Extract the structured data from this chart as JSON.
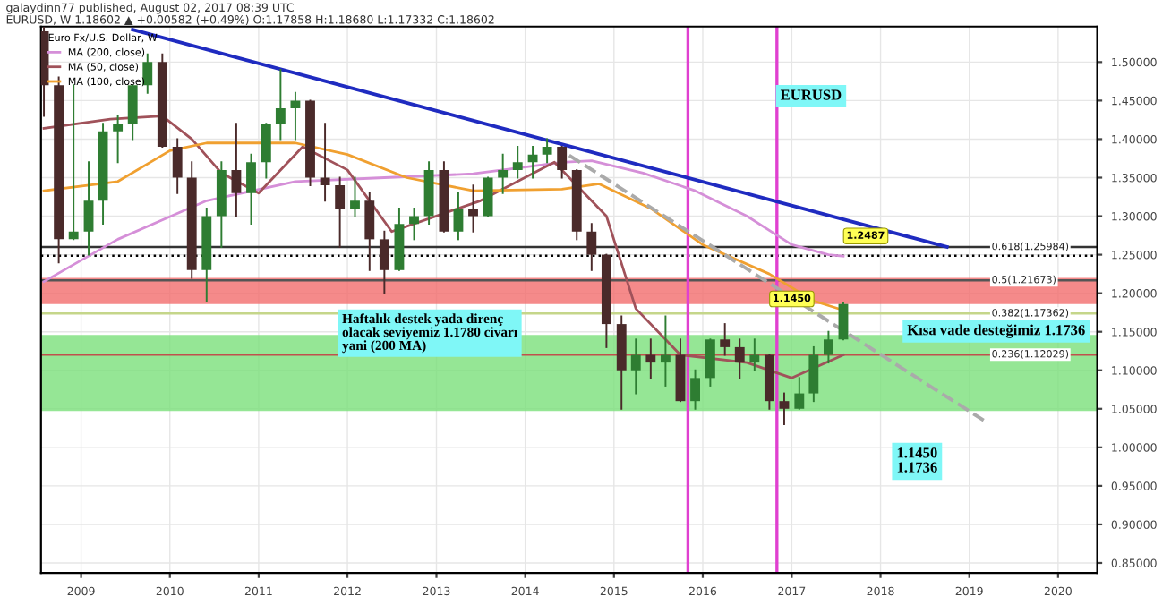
{
  "chart_data": {
    "type": "candlestick",
    "legend_title": "Euro Fx/U.S. Dollar, W",
    "legend": "top left",
    "grid": true,
    "xlim": [
      "2008-07-20",
      "2020-06-10"
    ],
    "xticks": [
      {
        "value": "2009-01",
        "label": "2009"
      },
      {
        "value": "2010-01",
        "label": "2010"
      },
      {
        "value": "2011-01",
        "label": "2011"
      },
      {
        "value": "2012-01",
        "label": "2012"
      },
      {
        "value": "2013-01",
        "label": "2013"
      },
      {
        "value": "2014-01",
        "label": "2014"
      },
      {
        "value": "2015-01",
        "label": "2015"
      },
      {
        "value": "2016-01",
        "label": "2016"
      },
      {
        "value": "2017-01",
        "label": "2017"
      },
      {
        "value": "2018-01",
        "label": "2018"
      },
      {
        "value": "2019-01",
        "label": "2019"
      },
      {
        "value": "2020-01",
        "label": "2020"
      }
    ],
    "ylim": [
      0.837,
      1.546
    ],
    "yticks": [
      {
        "value": 0.85,
        "label": "0.85000"
      },
      {
        "value": 0.9,
        "label": "0.90000"
      },
      {
        "value": 0.95,
        "label": "0.95000"
      },
      {
        "value": 1.0,
        "label": "1.00000"
      },
      {
        "value": 1.05,
        "label": "1.05000"
      },
      {
        "value": 1.1,
        "label": "1.10000"
      },
      {
        "value": 1.15,
        "label": "1.15000"
      },
      {
        "value": 1.2,
        "label": "1.20000"
      },
      {
        "value": 1.25,
        "label": "1.25000"
      },
      {
        "value": 1.3,
        "label": "1.30000"
      },
      {
        "value": 1.35,
        "label": "1.35000"
      },
      {
        "value": 1.4,
        "label": "1.40000"
      },
      {
        "value": 1.45,
        "label": "1.45000"
      },
      {
        "value": 1.5,
        "label": "1.50000"
      }
    ],
    "bands": [
      {
        "axis": "y",
        "from": 1.186,
        "to": 1.22,
        "color": "#f26d6d"
      },
      {
        "axis": "y",
        "from": 1.047,
        "to": 1.146,
        "color": "#7be07b"
      }
    ],
    "ref_lines": [
      {
        "axis": "y",
        "value": 1.25984,
        "label": "0.618(1.25984)",
        "color": "#333333"
      },
      {
        "axis": "y",
        "value": 1.21673,
        "label": "0.5(1.21673)",
        "color": "#555555"
      },
      {
        "axis": "y",
        "value": 1.17362,
        "label": "0.382(1.17362)",
        "color": "#c5d68a"
      },
      {
        "axis": "y",
        "value": 1.12029,
        "label": "0.236(1.12029)",
        "color": "#c0504d"
      },
      {
        "axis": "y",
        "value": 1.2487,
        "color": "#000000",
        "line_style": "dotted"
      },
      {
        "axis": "x",
        "value": "2015-11",
        "color": "#e040d0"
      },
      {
        "axis": "x",
        "value": "2016-11",
        "color": "#e040d0"
      }
    ],
    "annotations": [
      "galaydinn77 published, August 02, 2017 08:39 UTC",
      "EURUSD, W 1.18602 ▲ +0.00582 (+0.49%) O:1.17858 H:1.18680 L:1.17332 C:1.18602",
      "EURUSD",
      "Haftalık destek yada direnç\nolacak seviyemiz 1.1780 civarı\nyani (200 MA)",
      "Kısa vade desteğimiz 1.1736",
      "1.1450\n1.1736",
      {
        "text": "1.1450",
        "x": "2017-01",
        "y": 1.167
      },
      {
        "text": "1.2487",
        "x": "2017-11",
        "y": 1.2487
      }
    ],
    "series": [
      {
        "type": "candlestick",
        "x": [
          "2008-08",
          "2008-10",
          "2008-12",
          "2009-02",
          "2009-04",
          "2009-06",
          "2009-08",
          "2009-10",
          "2009-12",
          "2010-02",
          "2010-04",
          "2010-06",
          "2010-08",
          "2010-10",
          "2010-12",
          "2011-02",
          "2011-04",
          "2011-06",
          "2011-08",
          "2011-10",
          "2011-12",
          "2012-02",
          "2012-04",
          "2012-06",
          "2012-08",
          "2012-10",
          "2012-12",
          "2013-02",
          "2013-04",
          "2013-06",
          "2013-08",
          "2013-10",
          "2013-12",
          "2014-02",
          "2014-04",
          "2014-06",
          "2014-08",
          "2014-10",
          "2014-12",
          "2015-02",
          "2015-04",
          "2015-06",
          "2015-08",
          "2015-10",
          "2015-12",
          "2016-02",
          "2016-04",
          "2016-06",
          "2016-08",
          "2016-10",
          "2016-12",
          "2017-02",
          "2017-04",
          "2017-06",
          "2017-08"
        ],
        "ohlc": [
          [
            1.54,
            1.545,
            1.43,
            1.47
          ],
          [
            1.47,
            1.48,
            1.24,
            1.27
          ],
          [
            1.27,
            1.47,
            1.27,
            1.28
          ],
          [
            1.28,
            1.37,
            1.25,
            1.32
          ],
          [
            1.32,
            1.42,
            1.29,
            1.41
          ],
          [
            1.41,
            1.43,
            1.37,
            1.42
          ],
          [
            1.42,
            1.47,
            1.4,
            1.47
          ],
          [
            1.47,
            1.51,
            1.46,
            1.5
          ],
          [
            1.5,
            1.51,
            1.39,
            1.39
          ],
          [
            1.39,
            1.4,
            1.33,
            1.35
          ],
          [
            1.35,
            1.37,
            1.22,
            1.23
          ],
          [
            1.23,
            1.31,
            1.19,
            1.3
          ],
          [
            1.3,
            1.37,
            1.26,
            1.36
          ],
          [
            1.36,
            1.42,
            1.3,
            1.33
          ],
          [
            1.33,
            1.38,
            1.29,
            1.37
          ],
          [
            1.37,
            1.42,
            1.35,
            1.42
          ],
          [
            1.42,
            1.49,
            1.4,
            1.44
          ],
          [
            1.44,
            1.46,
            1.4,
            1.45
          ],
          [
            1.45,
            1.45,
            1.34,
            1.35
          ],
          [
            1.35,
            1.42,
            1.32,
            1.34
          ],
          [
            1.34,
            1.35,
            1.26,
            1.31
          ],
          [
            1.31,
            1.35,
            1.3,
            1.32
          ],
          [
            1.32,
            1.33,
            1.23,
            1.27
          ],
          [
            1.27,
            1.28,
            1.2,
            1.23
          ],
          [
            1.23,
            1.31,
            1.23,
            1.29
          ],
          [
            1.29,
            1.31,
            1.27,
            1.3
          ],
          [
            1.3,
            1.37,
            1.29,
            1.36
          ],
          [
            1.36,
            1.37,
            1.28,
            1.28
          ],
          [
            1.28,
            1.33,
            1.27,
            1.31
          ],
          [
            1.31,
            1.34,
            1.28,
            1.3
          ],
          [
            1.3,
            1.35,
            1.3,
            1.35
          ],
          [
            1.35,
            1.38,
            1.33,
            1.36
          ],
          [
            1.36,
            1.39,
            1.35,
            1.37
          ],
          [
            1.37,
            1.39,
            1.35,
            1.38
          ],
          [
            1.38,
            1.4,
            1.37,
            1.39
          ],
          [
            1.39,
            1.39,
            1.35,
            1.36
          ],
          [
            1.36,
            1.36,
            1.27,
            1.28
          ],
          [
            1.28,
            1.29,
            1.23,
            1.25
          ],
          [
            1.25,
            1.25,
            1.13,
            1.16
          ],
          [
            1.16,
            1.17,
            1.05,
            1.1
          ],
          [
            1.1,
            1.14,
            1.07,
            1.12
          ],
          [
            1.12,
            1.14,
            1.09,
            1.11
          ],
          [
            1.11,
            1.17,
            1.08,
            1.12
          ],
          [
            1.12,
            1.14,
            1.06,
            1.06
          ],
          [
            1.06,
            1.1,
            1.05,
            1.09
          ],
          [
            1.09,
            1.14,
            1.08,
            1.14
          ],
          [
            1.14,
            1.16,
            1.12,
            1.13
          ],
          [
            1.13,
            1.14,
            1.09,
            1.11
          ],
          [
            1.11,
            1.14,
            1.1,
            1.12
          ],
          [
            1.12,
            1.12,
            1.05,
            1.06
          ],
          [
            1.06,
            1.07,
            1.03,
            1.05
          ],
          [
            1.05,
            1.09,
            1.05,
            1.07
          ],
          [
            1.07,
            1.13,
            1.06,
            1.12
          ],
          [
            1.12,
            1.15,
            1.11,
            1.14
          ],
          [
            1.14,
            1.1868,
            1.14,
            1.186
          ]
        ],
        "colors": [
          "#4a2a2a",
          "#4a2a2a",
          "#2e7d32",
          "#2e7d32",
          "#2e7d32",
          "#2e7d32",
          "#2e7d32",
          "#2e7d32",
          "#4a2a2a",
          "#4a2a2a",
          "#4a2a2a",
          "#2e7d32",
          "#2e7d32",
          "#4a2a2a",
          "#2e7d32",
          "#2e7d32",
          "#2e7d32",
          "#2e7d32",
          "#4a2a2a",
          "#4a2a2a",
          "#4a2a2a",
          "#2e7d32",
          "#4a2a2a",
          "#4a2a2a",
          "#2e7d32",
          "#2e7d32",
          "#2e7d32",
          "#4a2a2a",
          "#2e7d32",
          "#4a2a2a",
          "#2e7d32",
          "#2e7d32",
          "#2e7d32",
          "#2e7d32",
          "#2e7d32",
          "#4a2a2a",
          "#4a2a2a",
          "#4a2a2a",
          "#4a2a2a",
          "#4a2a2a",
          "#2e7d32",
          "#4a2a2a",
          "#2e7d32",
          "#4a2a2a",
          "#2e7d32",
          "#2e7d32",
          "#4a2a2a",
          "#4a2a2a",
          "#2e7d32",
          "#4a2a2a",
          "#4a2a2a",
          "#2e7d32",
          "#2e7d32",
          "#2e7d32",
          "#2e7d32"
        ]
      },
      {
        "type": "line",
        "name": "MA (200, close)",
        "color": "#d58fd8",
        "x": [
          "2008-08",
          "2009-06",
          "2010-06",
          "2011-06",
          "2012-06",
          "2013-06",
          "2014-06",
          "2014-10",
          "2015-05",
          "2015-12",
          "2016-07",
          "2017-01",
          "2017-06",
          "2017-08"
        ],
        "values": [
          1.215,
          1.27,
          1.32,
          1.345,
          1.35,
          1.355,
          1.37,
          1.372,
          1.356,
          1.333,
          1.3,
          1.263,
          1.25,
          1.248
        ]
      },
      {
        "type": "line",
        "name": "MA (50, close)",
        "color": "#a0525a",
        "x": [
          "2008-08",
          "2009-05",
          "2009-12",
          "2010-04",
          "2010-08",
          "2011-01",
          "2011-07",
          "2012-01",
          "2012-07",
          "2013-07",
          "2014-05",
          "2014-12",
          "2015-04",
          "2015-10",
          "2016-07",
          "2017-01",
          "2017-08"
        ],
        "values": [
          1.414,
          1.426,
          1.43,
          1.4,
          1.356,
          1.33,
          1.39,
          1.36,
          1.28,
          1.32,
          1.37,
          1.3,
          1.18,
          1.12,
          1.11,
          1.09,
          1.12
        ]
      },
      {
        "type": "line",
        "name": "MA (100, close)",
        "color": "#f0a030",
        "x": [
          "2008-08",
          "2009-06",
          "2010-01",
          "2010-06",
          "2011-06",
          "2012-01",
          "2012-09",
          "2013-06",
          "2014-06",
          "2014-11",
          "2015-06",
          "2016-01",
          "2016-10",
          "2017-04",
          "2017-08"
        ],
        "values": [
          1.333,
          1.345,
          1.385,
          1.395,
          1.395,
          1.38,
          1.35,
          1.333,
          1.335,
          1.342,
          1.31,
          1.263,
          1.225,
          1.19,
          1.178
        ]
      },
      {
        "type": "line",
        "color": "#1f2bc0",
        "x": [
          "2009-08",
          "2018-10"
        ],
        "values": [
          1.542,
          1.26
        ]
      },
      {
        "type": "line",
        "color": "#aaaaaa",
        "line_style": "dashed",
        "x": [
          "2014-07",
          "2019-03"
        ],
        "values": [
          1.379,
          1.035
        ]
      }
    ]
  }
}
